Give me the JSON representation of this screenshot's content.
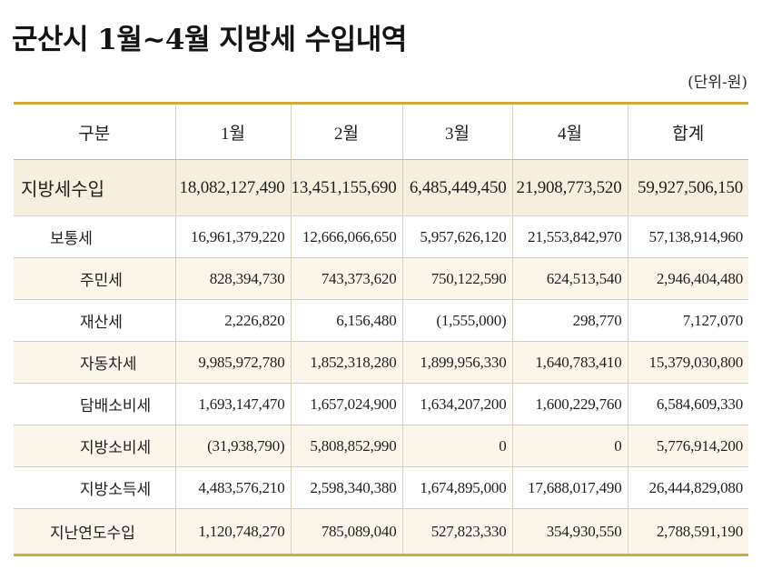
{
  "title": "군산시 1월~4월 지방세 수입내역",
  "unit": "(단위-원)",
  "table": {
    "headers": [
      "구분",
      "1월",
      "2월",
      "3월",
      "4월",
      "합계"
    ],
    "rows": [
      {
        "label": "지방세수입",
        "level": 0,
        "values": [
          "18,082,127,490",
          "13,451,155,690",
          "6,485,449,450",
          "21,908,773,520",
          "59,927,506,150"
        ]
      },
      {
        "label": "보통세",
        "level": 1,
        "values": [
          "16,961,379,220",
          "12,666,066,650",
          "5,957,626,120",
          "21,553,842,970",
          "57,138,914,960"
        ]
      },
      {
        "label": "주민세",
        "level": 2,
        "values": [
          "828,394,730",
          "743,373,620",
          "750,122,590",
          "624,513,540",
          "2,946,404,480"
        ]
      },
      {
        "label": "재산세",
        "level": 2,
        "values": [
          "2,226,820",
          "6,156,480",
          "(1,555,000)",
          "298,770",
          "7,127,070"
        ]
      },
      {
        "label": "자동차세",
        "level": 2,
        "values": [
          "9,985,972,780",
          "1,852,318,280",
          "1,899,956,330",
          "1,640,783,410",
          "15,379,030,800"
        ]
      },
      {
        "label": "담배소비세",
        "level": 2,
        "values": [
          "1,693,147,470",
          "1,657,024,900",
          "1,634,207,200",
          "1,600,229,760",
          "6,584,609,330"
        ]
      },
      {
        "label": "지방소비세",
        "level": 2,
        "values": [
          "(31,938,790)",
          "5,808,852,990",
          "0",
          "0",
          "5,776,914,200"
        ]
      },
      {
        "label": "지방소득세",
        "level": 2,
        "values": [
          "4,483,576,210",
          "2,598,340,380",
          "1,674,895,000",
          "17,688,017,490",
          "26,444,829,080"
        ]
      },
      {
        "label": "지난연도수입",
        "level": 1,
        "values": [
          "1,120,748,270",
          "785,089,040",
          "527,823,330",
          "354,930,550",
          "2,788,591,190"
        ]
      }
    ]
  },
  "colors": {
    "accent_gold": "#d2a93b",
    "total_row_bg": "#f7efdd",
    "alt_row_bg": "#fbf6ea"
  }
}
